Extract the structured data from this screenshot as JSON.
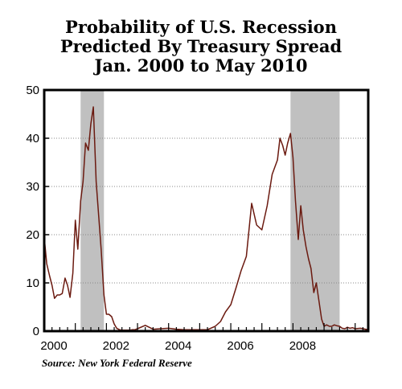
{
  "chart_data": {
    "type": "line",
    "title_lines": [
      "Probability of U.S. Recession",
      "Predicted By Treasury Spread",
      "Jan. 2000 to May 2010"
    ],
    "xlabel": "",
    "ylabel": "",
    "xlim": [
      2000.0,
      2010.42
    ],
    "ylim": [
      0,
      50
    ],
    "y_ticks": [
      0,
      10,
      20,
      30,
      40,
      50
    ],
    "x_ticks": [
      2000,
      2002,
      2004,
      2006,
      2008
    ],
    "grid": "horizontal-dotted",
    "line_color": "#6b1a10",
    "recession_color": "#c0c0c0",
    "recession_bands": [
      [
        2001.17,
        2001.92
      ],
      [
        2007.92,
        2009.5
      ]
    ],
    "series": [
      {
        "x": [
          2000.0,
          2000.08,
          2000.17,
          2000.25,
          2000.33,
          2000.42,
          2000.5,
          2000.58,
          2000.67,
          2000.75,
          2000.83,
          2000.92,
          2001.0,
          2001.08,
          2001.17,
          2001.25,
          2001.33,
          2001.42,
          2001.5,
          2001.58,
          2001.67,
          2001.75,
          2001.83,
          2001.92,
          2002.0,
          2002.08,
          2002.17,
          2002.25,
          2002.33,
          2002.42,
          2002.5,
          2002.58,
          2002.67,
          2002.75,
          2002.83,
          2002.92,
          2003.0,
          2003.25,
          2003.5,
          2003.75,
          2004.0,
          2004.25,
          2004.5,
          2004.75,
          2005.0,
          2005.25,
          2005.5,
          2005.67,
          2005.83,
          2006.0,
          2006.17,
          2006.33,
          2006.5,
          2006.67,
          2006.83,
          2007.0,
          2007.17,
          2007.33,
          2007.5,
          2007.58,
          2007.67,
          2007.75,
          2007.83,
          2007.92,
          2008.0,
          2008.08,
          2008.17,
          2008.25,
          2008.33,
          2008.42,
          2008.5,
          2008.58,
          2008.67,
          2008.75,
          2008.83,
          2008.92,
          2009.0,
          2009.08,
          2009.17,
          2009.25,
          2009.33,
          2009.42,
          2009.5,
          2009.58,
          2009.67,
          2009.75,
          2009.83,
          2009.92,
          2010.0,
          2010.17,
          2010.33,
          2010.42
        ],
        "values": [
          19.5,
          14.0,
          11.5,
          9.5,
          6.8,
          7.5,
          7.5,
          7.8,
          11.0,
          9.5,
          7.0,
          12.0,
          23.0,
          17.0,
          27.0,
          31.0,
          39.0,
          37.5,
          43.0,
          46.5,
          31.0,
          24.0,
          17.0,
          7.5,
          3.5,
          3.5,
          3.0,
          1.5,
          0.6,
          0.3,
          0.2,
          0.2,
          0.2,
          0.2,
          0.3,
          0.3,
          0.5,
          1.2,
          0.4,
          0.5,
          0.6,
          0.4,
          0.3,
          0.3,
          0.3,
          0.3,
          1.0,
          2.0,
          4.0,
          5.5,
          9.0,
          12.5,
          15.5,
          26.5,
          22.0,
          21.0,
          26.0,
          32.5,
          35.5,
          40.0,
          38.5,
          36.5,
          39.0,
          41.0,
          36.0,
          27.0,
          19.0,
          26.0,
          21.0,
          17.5,
          15.0,
          13.0,
          8.0,
          10.0,
          6.5,
          2.5,
          1.0,
          1.3,
          1.0,
          1.0,
          1.3,
          1.1,
          1.0,
          0.6,
          0.5,
          0.8,
          0.6,
          0.7,
          0.5,
          0.6,
          0.4,
          0.3
        ]
      }
    ],
    "source_note": "Source: New York Federal Reserve"
  }
}
